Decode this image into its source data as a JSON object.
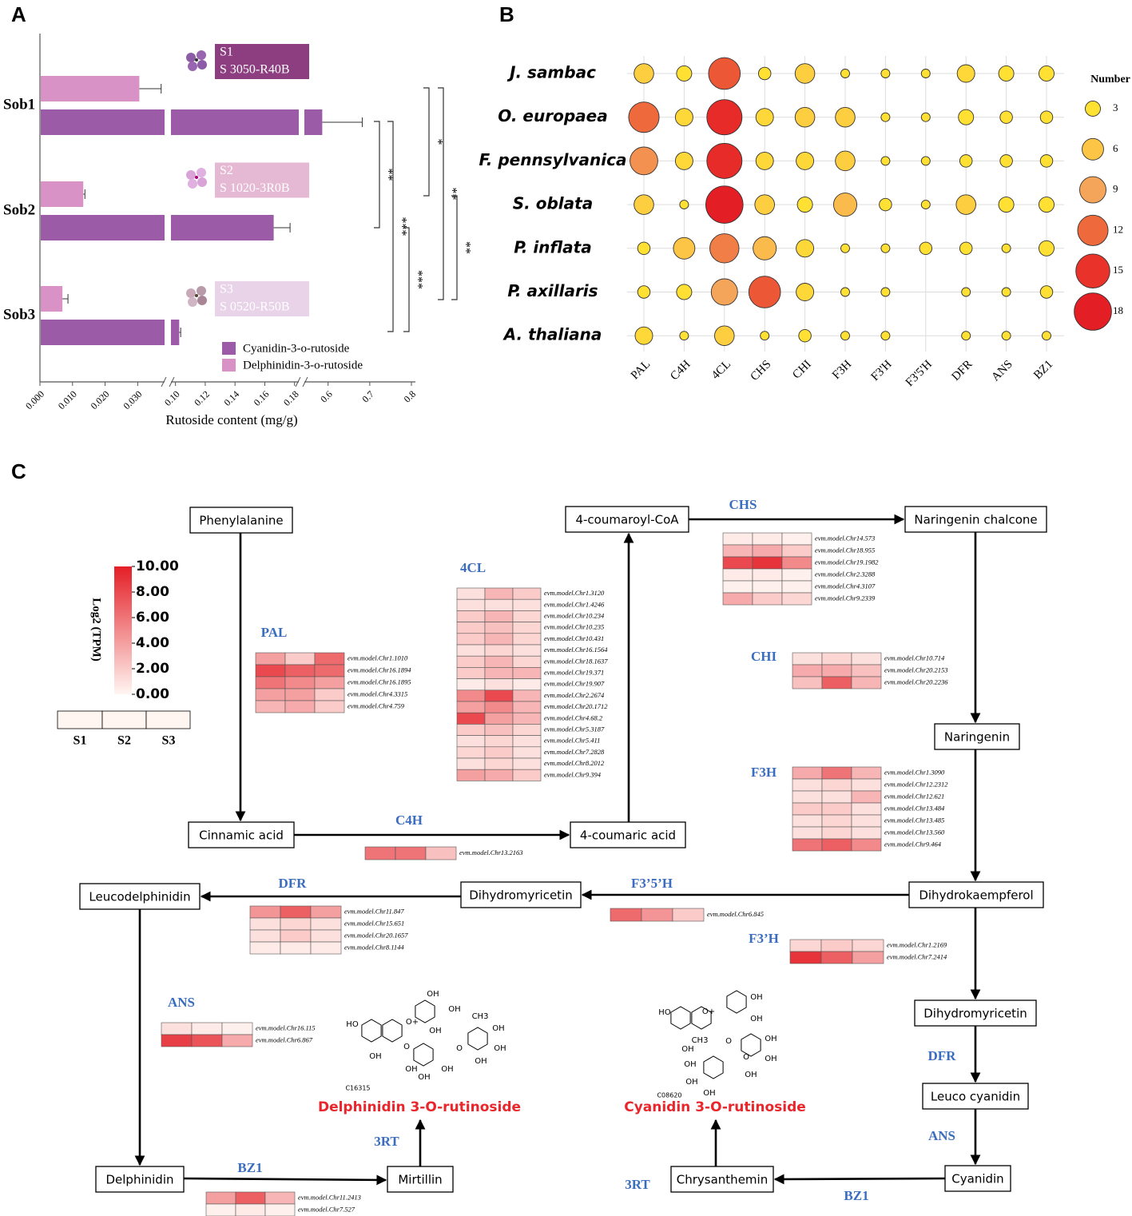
{
  "panel_labels": [
    "A",
    "B",
    "C"
  ],
  "chart_data": [
    {
      "type": "bar",
      "orientation": "horizontal",
      "categories": [
        "Sob1",
        "Sob2",
        "Sob3"
      ],
      "series": [
        {
          "name": "Cyanidin-3-o-rutoside",
          "color": "#9c5ba6",
          "values": [
            0.586,
            0.166,
            0.1025
          ],
          "errors": [
            0.096,
            0.011,
            0.001
          ]
        },
        {
          "name": "Delphinidin-3-o-rutoside",
          "color": "#d892c6",
          "values": [
            0.0305,
            0.0133,
            0.0069
          ],
          "errors": [
            0.0067,
            0.0005,
            0.0017
          ]
        }
      ],
      "xlabel": "Rutoside content (mg/g)",
      "xsegments": [
        [
          0,
          0.038
        ],
        [
          0.0975,
          0.185
        ],
        [
          0.545,
          0.8
        ]
      ],
      "xticks": [
        {
          "value": 0,
          "label": "0.000"
        },
        {
          "value": 0.01,
          "label": "0.010"
        },
        {
          "value": 0.02,
          "label": "0.020"
        },
        {
          "value": 0.03,
          "label": "0.030"
        },
        {
          "value": 0.1,
          "label": "0.10"
        },
        0.12,
        0.14,
        0.16,
        0.18,
        0.6,
        0.7,
        0.8
      ],
      "significance": [
        "**",
        "***",
        "***",
        "*",
        "**",
        "**"
      ],
      "samples": [
        {
          "name": "S1",
          "code": "S 3050-R40B",
          "color": "#8c3e80"
        },
        {
          "name": "S2",
          "code": "S 1020-3R0B",
          "color": "#e5b8d3"
        },
        {
          "name": "S3",
          "code": "S 0520-R50B",
          "color": "#e8d3e8"
        }
      ]
    },
    {
      "type": "bubble",
      "categories": [
        "PAL",
        "C4H",
        "4CL",
        "CHS",
        "CHI",
        "F3H",
        "F3'H",
        "F3'5'H",
        "DFR",
        "ANS",
        "BZ1"
      ],
      "series": [
        {
          "name": "J. sambac",
          "values": [
            5,
            3,
            13,
            2,
            5,
            1,
            1,
            1,
            4,
            3,
            3
          ]
        },
        {
          "name": "O. europaea",
          "values": [
            12,
            4,
            16,
            4,
            5,
            5,
            1,
            1,
            3,
            2,
            2
          ]
        },
        {
          "name": "F. pennsylvanica",
          "values": [
            10,
            4,
            16,
            4,
            4,
            5,
            1,
            1,
            2,
            2,
            2
          ]
        },
        {
          "name": "S. oblata",
          "values": [
            5,
            1,
            18,
            5,
            3,
            7,
            2,
            1,
            5,
            3,
            3
          ]
        },
        {
          "name": "P. inflata",
          "values": [
            2,
            6,
            11,
            7,
            4,
            1,
            1,
            2,
            2,
            1,
            3
          ]
        },
        {
          "name": "P. axillaris",
          "values": [
            2,
            3,
            9,
            13,
            4,
            1,
            1,
            null,
            1,
            1,
            2
          ]
        },
        {
          "name": "A. thaliana",
          "values": [
            4,
            1,
            5,
            1,
            2,
            1,
            1,
            null,
            1,
            1,
            1
          ]
        }
      ],
      "grid": true,
      "size_legend": {
        "title": "Number",
        "values": [
          3,
          6,
          9,
          12,
          15,
          18
        ],
        "colors": [
          "#ffe033",
          "#fcc545",
          "#f5a55a",
          "#ee6a3c",
          "#e8322a",
          "#e31e24"
        ]
      }
    }
  ],
  "pathway": {
    "nodes": [
      "Phenylalanine",
      "Cinnamic acid",
      "4-coumaric acid",
      "4-coumaroyl-CoA",
      "Naringenin chalcone",
      "Naringenin",
      "Dihydrokaempferol",
      "Dihydromyricetin",
      "Leucodelphinidin",
      "Dihydromyricetin",
      "Leuco cyanidin",
      "Cyanidin",
      "Chrysanthemin",
      "Delphinidin",
      "Mirtillin"
    ],
    "enzymes": [
      "PAL",
      "4CL",
      "CHS",
      "CHI",
      "F3H",
      "C4H",
      "DFR",
      "F3’5’H",
      "F3’H",
      "DFR",
      "ANS",
      "ANS",
      "3RT",
      "3RT",
      "BZ1",
      "BZ1"
    ],
    "scale": {
      "title": "Log2 (TPM)",
      "colors": [
        "#fff6f2",
        "#e41e26"
      ],
      "ticks": [
        {
          "value": 10,
          "label": "10.00"
        },
        {
          "value": 8,
          "label": "8.00"
        },
        {
          "value": 6,
          "label": "6.00"
        },
        {
          "value": 4,
          "label": "4.00"
        },
        {
          "value": 2,
          "label": "2.00"
        },
        {
          "value": 0,
          "label": "0.00"
        }
      ]
    },
    "samples": [
      "S1",
      "S2",
      "S3"
    ],
    "heatmaps": [
      {
        "genes": [
          "evm.model.Chr1.1010",
          "evm.model.Chr16.1894",
          "evm.model.Chr16.1895",
          "evm.model.Chr4.3315",
          "evm.model.Chr4.759"
        ],
        "values": [
          [
            4,
            2,
            6.5
          ],
          [
            8,
            7,
            6.5
          ],
          [
            6,
            5,
            4
          ],
          [
            4,
            4,
            2
          ],
          [
            3,
            3.5,
            2
          ]
        ]
      },
      {
        "genes": [
          "evm.model.Chr1.3120",
          "evm.model.Chr1.4246",
          "evm.model.Chr10.234",
          "evm.model.Chr10.235",
          "evm.model.Chr10.431",
          "evm.model.Chr16.1564",
          "evm.model.Chr18.1637",
          "evm.model.Chr19.371",
          "evm.model.Chr19.907",
          "evm.model.Chr2.2674",
          "evm.model.Chr20.1712",
          "evm.model.Chr4.68.2",
          "evm.model.Chr5.3187",
          "evm.model.Chr5.411",
          "evm.model.Chr7.2828",
          "evm.model.Chr8.2012",
          "evm.model.Chr9.394"
        ],
        "values": [
          [
            1,
            3,
            2
          ],
          [
            1,
            1,
            1
          ],
          [
            2,
            3,
            1.5
          ],
          [
            2,
            2.5,
            1.5
          ],
          [
            2,
            3,
            1.5
          ],
          [
            1,
            1.5,
            1
          ],
          [
            2,
            3,
            1.5
          ],
          [
            2,
            3,
            3
          ],
          [
            0.5,
            1,
            0.5
          ],
          [
            5,
            8,
            3
          ],
          [
            4,
            5,
            3
          ],
          [
            8,
            4,
            3
          ],
          [
            2,
            2.5,
            1.5
          ],
          [
            1,
            1.5,
            1
          ],
          [
            1.5,
            2,
            1
          ],
          [
            1,
            1.5,
            1
          ],
          [
            4,
            3.5,
            2
          ]
        ]
      },
      {
        "genes": [
          "evm.model.Chr14.573",
          "evm.model.Chr18.955",
          "evm.model.Chr19.1982",
          "evm.model.Chr2.3288",
          "evm.model.Chr4.3107",
          "evm.model.Chr9.2339"
        ],
        "values": [
          [
            0.5,
            0.5,
            0.3
          ],
          [
            3,
            3.5,
            2
          ],
          [
            8,
            9,
            5
          ],
          [
            0.5,
            0.5,
            0.3
          ],
          [
            0.3,
            0.3,
            0.3
          ],
          [
            3.5,
            2,
            1.5
          ]
        ]
      },
      {
        "genes": [
          "evm.model.Chr10.714",
          "evm.model.Chr20.2153",
          "evm.model.Chr20.2236"
        ],
        "values": [
          [
            1,
            1.5,
            1
          ],
          [
            3.5,
            3.5,
            2.5
          ],
          [
            2.5,
            7,
            3
          ]
        ]
      },
      {
        "genes": [
          "evm.model.Chr1.3090",
          "evm.model.Chr12.2312",
          "evm.model.Chr12.621",
          "evm.model.Chr13.484",
          "evm.model.Chr13.485",
          "evm.model.Chr13.560",
          "evm.model.Chr9.464"
        ],
        "values": [
          [
            3.5,
            6,
            3
          ],
          [
            1,
            1.5,
            1
          ],
          [
            1,
            1,
            3
          ],
          [
            2,
            2,
            1
          ],
          [
            1,
            1.5,
            1
          ],
          [
            1,
            1.5,
            1
          ],
          [
            6,
            7,
            5
          ]
        ]
      },
      {
        "genes": [
          "evm.model.Chr13.2163"
        ],
        "values": [
          [
            6,
            6,
            2.5
          ]
        ]
      },
      {
        "genes": [
          "evm.model.Chr11.847",
          "evm.model.Chr15.651",
          "evm.model.Chr20.1657",
          "evm.model.Chr8.1144"
        ],
        "values": [
          [
            4.5,
            7,
            4
          ],
          [
            1,
            1.5,
            1
          ],
          [
            1,
            2,
            1
          ],
          [
            0.5,
            0.5,
            0.5
          ]
        ]
      },
      {
        "genes": [
          "evm.model.Chr6.845"
        ],
        "values": [
          [
            6.5,
            4.5,
            2
          ]
        ]
      },
      {
        "genes": [
          "evm.model.Chr1.2169",
          "evm.model.Chr7.2414"
        ],
        "values": [
          [
            1.5,
            2,
            1.5
          ],
          [
            9,
            7,
            4
          ]
        ]
      },
      {
        "genes": [
          "evm.model.Chr16.115",
          "evm.model.Chr6.867"
        ],
        "values": [
          [
            1,
            0.5,
            0.3
          ],
          [
            8.5,
            7.5,
            3.5
          ]
        ]
      },
      {
        "genes": [
          "evm.model.Chr11.2413",
          "evm.model.Chr7.527"
        ],
        "values": [
          [
            4,
            7,
            3
          ],
          [
            0.3,
            0.5,
            0.3
          ]
        ]
      }
    ],
    "compounds": [
      {
        "name": "Delphinidin 3-O-rutinoside",
        "id": "C16315",
        "atoms": [
          "HO",
          "O+",
          "OH",
          "OH",
          "OH",
          "OH",
          "O",
          "O",
          "CH3",
          "OH",
          "OH",
          "OH",
          "OH",
          "OH",
          "OH"
        ]
      },
      {
        "name": "Cyanidin 3-O-rutinoside",
        "id": "C08620",
        "atoms": [
          "HO",
          "O+",
          "OH",
          "OH",
          "OH",
          "O",
          "CH3",
          "OH",
          "OH",
          "OH",
          "O",
          "OH",
          "OH",
          "OH"
        ]
      }
    ]
  }
}
